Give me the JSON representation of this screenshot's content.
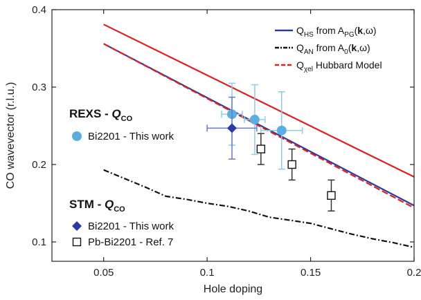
{
  "chart_data": {
    "type": "line",
    "title": "",
    "xlabel": "Hole doping",
    "ylabel": "CO wavevector (r.l.u.)",
    "xlim": [
      0.025,
      0.2
    ],
    "ylim": [
      0.075,
      0.4
    ],
    "xticks": [
      0.05,
      0.1,
      0.15,
      0.2
    ],
    "xtick_labels": [
      "0.05",
      "0.1",
      "0.15",
      "0.2"
    ],
    "yticks": [
      0.1,
      0.2,
      0.3,
      0.4
    ],
    "ytick_labels": [
      "0.1",
      "0.2",
      "0.3",
      "0.4"
    ],
    "grid": false,
    "legend_position": "top-right",
    "series": [
      {
        "name": "Q_HS from A_PG(k,ω)",
        "legend_main": "Q",
        "legend_sub": "HS",
        "legend_rest": " from A",
        "legend_sub2": "PG",
        "legend_tail_a": "(",
        "legend_bold": "k",
        "legend_tail_b": ",ω)",
        "kind": "line",
        "color": "#2b3aa0",
        "dash": "solid",
        "x": [
          0.05,
          0.2
        ],
        "y": [
          0.356,
          0.147
        ]
      },
      {
        "name": "Q_AN from A_0(k,ω)",
        "legend_main": "Q",
        "legend_sub": "AN",
        "legend_rest": " from A",
        "legend_sub2": "0",
        "legend_tail_a": "(",
        "legend_bold": "k",
        "legend_tail_b": ",ω)",
        "kind": "line",
        "color": "#111111",
        "dash": "dashdot",
        "x": [
          0.05,
          0.06,
          0.07,
          0.08,
          0.09,
          0.1,
          0.11,
          0.12,
          0.13,
          0.14,
          0.15,
          0.16,
          0.17,
          0.18,
          0.19,
          0.2
        ],
        "y": [
          0.193,
          0.182,
          0.171,
          0.159,
          0.155,
          0.15,
          0.146,
          0.14,
          0.132,
          0.128,
          0.124,
          0.117,
          0.11,
          0.104,
          0.099,
          0.093
        ]
      },
      {
        "name": "Q_χel Hubbard Model",
        "legend_main": "Q",
        "legend_sub": "χel",
        "legend_rest": " Hubbard Model",
        "legend_sub2": "",
        "legend_tail_a": "",
        "legend_bold": "",
        "legend_tail_b": "",
        "kind": "line",
        "color": "#e02020",
        "dash": "dashed",
        "x": [
          0.05,
          0.2
        ],
        "y": [
          0.356,
          0.144
        ]
      },
      {
        "name": "",
        "kind": "line",
        "color": "#e02020",
        "dash": "solid",
        "x": [
          0.05,
          0.2
        ],
        "y": [
          0.381,
          0.184
        ]
      }
    ],
    "groups": [
      {
        "title_main": "REXS - ",
        "title_q": "Q",
        "title_sub": "CO",
        "items": [
          {
            "label": "Bi2201 - This work",
            "marker": "circle",
            "color": "#5aafe0",
            "points": [
              {
                "x": 0.112,
                "y": 0.265,
                "xerr": 0.005,
                "yerr": 0.04
              },
              {
                "x": 0.123,
                "y": 0.258,
                "xerr": 0.005,
                "yerr": 0.045
              },
              {
                "x": 0.136,
                "y": 0.244,
                "xerr": 0.01,
                "yerr": 0.05
              }
            ]
          }
        ]
      },
      {
        "title_main": "STM - ",
        "title_q": "Q",
        "title_sub": "CO",
        "items": [
          {
            "label": "Bi2201 - This work",
            "marker": "diamond",
            "color": "#2b3aa0",
            "points": [
              {
                "x": 0.112,
                "y": 0.247,
                "xerr": 0.012,
                "yerr": 0.04
              }
            ]
          },
          {
            "label": "Pb-Bi2201 - Ref. 7",
            "marker": "open-square",
            "color": "#111111",
            "points": [
              {
                "x": 0.126,
                "y": 0.22,
                "xerr": 0,
                "yerr": 0.02
              },
              {
                "x": 0.141,
                "y": 0.2,
                "xerr": 0,
                "yerr": 0.02
              },
              {
                "x": 0.16,
                "y": 0.16,
                "xerr": 0,
                "yerr": 0.02
              }
            ]
          }
        ]
      }
    ]
  }
}
